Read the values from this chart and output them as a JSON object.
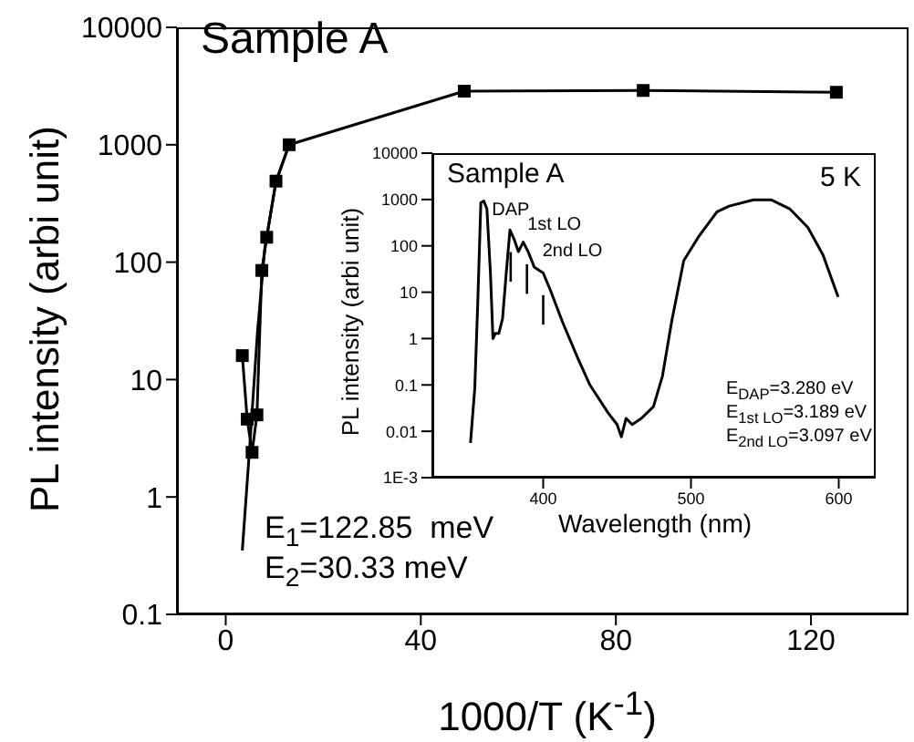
{
  "chart_data": [
    {
      "type": "line",
      "xlabel": "1000/T (K$^{-1}$)",
      "ylabel": "PL intensity (arbi unit)",
      "log": "y",
      "xlim": [
        -10,
        140
      ],
      "xticks": [
        0,
        40,
        80,
        120
      ],
      "ylim": [
        0.1,
        10000
      ],
      "yticks": [
        0.1,
        1,
        10,
        100,
        1000,
        10000
      ],
      "grid": false,
      "legend": false,
      "annotations": [
        "Sample A",
        "E$_{1}$=122.85  meV",
        "E$_{2}$=30.33 meV"
      ],
      "series": [
        {
          "color": "#000000",
          "marker": "square",
          "x": [
            3.4,
            4.4,
            5.4,
            6.4,
            7.4,
            8.4,
            10.3,
            13.0,
            48.9,
            85.6,
            125.2
          ],
          "values": [
            16,
            4.6,
            2.4,
            5.0,
            85,
            163,
            490,
            1000,
            2860,
            2900,
            2800
          ]
        },
        {
          "color": "#000000",
          "marker": "none",
          "x": [
            3.4,
            5.0,
            6.5,
            8.0,
            10.3,
            13.0
          ],
          "values": [
            0.35,
            3,
            25,
            130,
            480,
            1000
          ]
        }
      ]
    },
    {
      "type": "line",
      "xlabel": "Wavelength (nm)",
      "ylabel": "PL intensity (arbi unit)",
      "log": "y",
      "xlim": [
        325,
        625
      ],
      "xticks": [
        400,
        500,
        600
      ],
      "ylim": [
        0.001,
        10000
      ],
      "yticks": [
        {
          "value": 0.001,
          "label": "1E-3"
        },
        0.01,
        0.1,
        1,
        10,
        100,
        1000,
        10000
      ],
      "grid": false,
      "legend": false,
      "annotations": [
        "Sample A",
        "5 K",
        "E$_{DAP}$=3.280 eV",
        "E$_{1st LO}$=3.189 eV",
        "E$_{2nd LO}$=3.097 eV",
        {
          "text": "DAP",
          "x": 378,
          "y": 220
        },
        {
          "text": "1st LO",
          "x": 389,
          "y": 120
        },
        {
          "text": "2nd LO",
          "x": 400,
          "y": 26
        }
      ],
      "series": [
        {
          "color": "#000000",
          "marker": "none",
          "x": [
            350.8,
            353.7,
            355.7,
            357.8,
            359.8,
            361.9,
            364.3,
            366,
            367.6,
            370,
            372.5,
            375,
            377.5,
            380.3,
            383.2,
            386.5,
            389.8,
            393.9,
            400,
            404.9,
            413,
            423.4,
            431.6,
            443.9,
            450,
            452.9,
            456.1,
            460.2,
            466.4,
            474.6,
            480.7,
            486.9,
            495.1,
            505.3,
            517.6,
            525.8,
            542.2,
            554.5,
            566.8,
            579.1,
            589.3,
            599.6
          ],
          "values": [
            0.0056,
            0.085,
            5.8,
            850,
            930,
            630,
            26,
            1,
            1.3,
            1.3,
            2.7,
            26,
            220,
            140,
            75,
            120,
            75,
            35,
            26,
            11,
            2.3,
            0.38,
            0.1,
            0.025,
            0.014,
            0.0076,
            0.019,
            0.014,
            0.019,
            0.034,
            0.155,
            2.3,
            48,
            160,
            540,
            720,
            980,
            980,
            630,
            250,
            64,
            7.9
          ]
        }
      ]
    }
  ]
}
